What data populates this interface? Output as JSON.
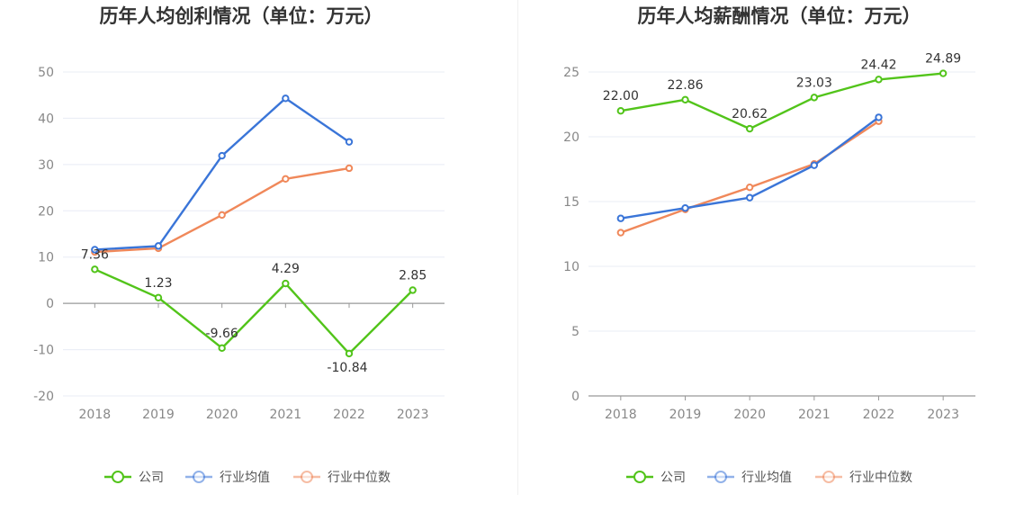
{
  "chart_data": [
    {
      "type": "line",
      "title": "历年人均创利情况（单位：万元）",
      "categories": [
        "2018",
        "2019",
        "2020",
        "2021",
        "2022",
        "2023"
      ],
      "ylim": [
        -20,
        50
      ],
      "yticks": [
        50,
        40,
        30,
        20,
        10,
        0,
        -10,
        -20
      ],
      "grid": true,
      "legend_position": "bottom-center",
      "series": [
        {
          "name": "公司",
          "color": "#52c41a",
          "values": [
            7.36,
            1.23,
            -9.66,
            4.29,
            -10.84,
            2.85
          ],
          "labels": [
            "7.36",
            "1.23",
            "-9.66",
            "4.29",
            "-10.84",
            "2.85"
          ]
        },
        {
          "name": "行业均值",
          "color": "#3a75d8",
          "values": [
            11.6,
            12.4,
            31.9,
            44.3,
            34.9,
            null
          ]
        },
        {
          "name": "行业中位数",
          "color": "#f0885a",
          "values": [
            11.1,
            11.9,
            19.1,
            26.9,
            29.2,
            null
          ]
        }
      ]
    },
    {
      "type": "line",
      "title": "历年人均薪酬情况（单位：万元）",
      "categories": [
        "2018",
        "2019",
        "2020",
        "2021",
        "2022",
        "2023"
      ],
      "ylim": [
        0,
        25
      ],
      "yticks": [
        25,
        20,
        15,
        10,
        5,
        0
      ],
      "grid": true,
      "legend_position": "bottom-center",
      "series": [
        {
          "name": "公司",
          "color": "#52c41a",
          "values": [
            22.0,
            22.86,
            20.62,
            23.03,
            24.42,
            24.89
          ],
          "labels": [
            "22.00",
            "22.86",
            "20.62",
            "23.03",
            "24.42",
            "24.89"
          ]
        },
        {
          "name": "行业均值",
          "color": "#3a75d8",
          "values": [
            13.7,
            14.5,
            15.3,
            17.8,
            21.5,
            null
          ]
        },
        {
          "name": "行业中位数",
          "color": "#f0885a",
          "values": [
            12.6,
            14.4,
            16.1,
            17.9,
            21.2,
            null
          ]
        }
      ]
    }
  ]
}
